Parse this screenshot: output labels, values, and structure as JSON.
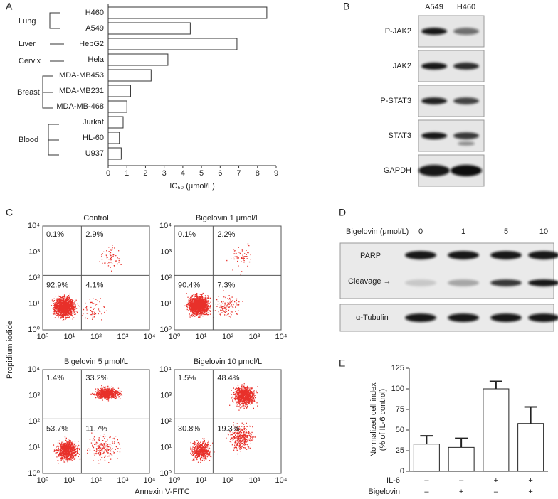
{
  "panel_labels": [
    "A",
    "B",
    "C",
    "D",
    "E"
  ],
  "chart_data": [
    {
      "type": "hbar",
      "categories": [
        "H460",
        "A549",
        "HepG2",
        "Hela",
        "MDA-MB453",
        "MDA-MB231",
        "MDA-MB-468",
        "Jurkat",
        "HL-60",
        "U937"
      ],
      "values": [
        8.5,
        4.4,
        6.9,
        3.2,
        2.3,
        1.2,
        1.0,
        0.8,
        0.6,
        0.7
      ],
      "groups": [
        "Lung",
        "Liver",
        "Cervix",
        "Breast",
        "Blood"
      ],
      "xlabel": "IC₅₀ (μmol/L)",
      "xlim": [
        0,
        9
      ],
      "xticks": [
        0,
        1,
        2,
        3,
        4,
        5,
        6,
        7,
        8,
        9
      ],
      "color": "#ffffff"
    },
    {
      "type": "bar",
      "categories": [
        null,
        null,
        null,
        null
      ],
      "values": [
        33,
        29,
        100,
        58
      ],
      "errors": [
        10,
        11,
        9,
        20
      ],
      "ylabel": [
        "Normalized cell index",
        "(% of IL-6 control)"
      ],
      "ylim": [
        0,
        125
      ],
      "yticks": [
        0,
        25,
        50,
        75,
        100,
        125
      ],
      "conditions": [
        {
          "name": "IL-6",
          "signs": [
            "–",
            "–",
            "+",
            "+"
          ]
        },
        {
          "name": "Bigelovin",
          "signs": [
            "–",
            "+",
            "–",
            "+"
          ]
        }
      ],
      "color": "#ffffff"
    }
  ],
  "blot_b": {
    "columns": [
      "A549",
      "H460"
    ],
    "rows": [
      "P-JAK2",
      "JAK2",
      "P-STAT3",
      "STAT3",
      "GAPDH"
    ]
  },
  "flow": {
    "plots": [
      {
        "title": "Control",
        "quadrants": [
          "0.1%",
          "2.9%",
          "92.9%",
          "4.1%"
        ]
      },
      {
        "title": "Bigelovin 1 μmol/L",
        "quadrants": [
          "0.1%",
          "2.2%",
          "90.4%",
          "7.3%"
        ]
      },
      {
        "title": "Bigelovin 5 μmol/L",
        "quadrants": [
          "1.4%",
          "33.2%",
          "53.7%",
          "11.7%"
        ]
      },
      {
        "title": "Bigelovin 10 μmol/L",
        "quadrants": [
          "1.5%",
          "48.4%",
          "30.8%",
          "19.3%"
        ]
      }
    ],
    "ticks": [
      "10⁰",
      "10¹",
      "10²",
      "10³",
      "10⁴"
    ],
    "xlabel": "Annexin V-FITC",
    "ylabel": "Propidium iodide"
  },
  "blot_d": {
    "treatment": "Bigelovin (μmol/L)",
    "doses": [
      "0",
      "1",
      "5",
      "10"
    ],
    "rows": [
      "PARP",
      "Cleavage →",
      "α-Tubulin"
    ]
  }
}
